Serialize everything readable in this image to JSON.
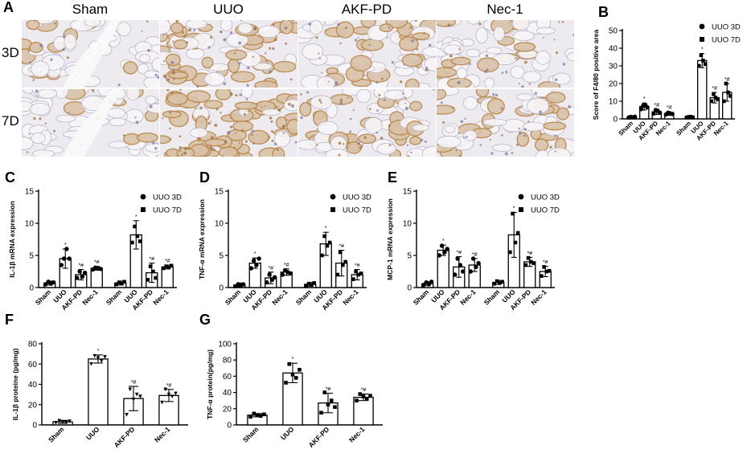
{
  "panel_letters": {
    "A": "A",
    "B": "B",
    "C": "C",
    "D": "D",
    "E": "E",
    "F": "F",
    "G": "G"
  },
  "micrograph": {
    "columns": [
      "Sham",
      "UUO",
      "AKF-PD",
      "Nec-1"
    ],
    "rows": [
      "3D",
      "7D"
    ],
    "staining_level": [
      [
        0.15,
        0.55,
        0.35,
        0.25
      ],
      [
        0.2,
        0.9,
        0.45,
        0.35
      ]
    ]
  },
  "colors": {
    "bar_fill": "#ffffff",
    "bar_stroke": "#000000",
    "tissue": "#eeebf0",
    "stain": "#b8874a"
  },
  "chart_data": [
    {
      "panel": "B",
      "type": "bar",
      "categories": [
        "Sham",
        "UUO",
        "AKF-PD",
        "Nec-1"
      ],
      "ylabel": "Score of F4/80 positive area",
      "ylim": [
        0,
        50
      ],
      "yticks": [
        0,
        10,
        20,
        30,
        40,
        50
      ],
      "series": [
        {
          "name": "UUO 3D",
          "marker": "circle",
          "values": [
            1,
            7,
            4,
            3
          ],
          "err": [
            0.4,
            2,
            1.5,
            1
          ],
          "annotations": [
            "",
            "*",
            "*#",
            "*#"
          ],
          "points": [
            [
              0.8,
              1.1,
              0.9,
              1.2
            ],
            [
              5.5,
              7.5,
              8,
              6.5
            ],
            [
              3,
              5,
              4.5,
              3.5
            ],
            [
              2.5,
              3.5,
              3,
              2.8
            ]
          ]
        },
        {
          "name": "UUO 7D",
          "marker": "square",
          "values": [
            1,
            33,
            12,
            15
          ],
          "err": [
            0.4,
            4,
            3,
            5
          ],
          "annotations": [
            "",
            "*",
            "*#",
            "*#"
          ],
          "points": [
            [
              0.8,
              1.1,
              1.2,
              0.9
            ],
            [
              30,
              36,
              33,
              31
            ],
            [
              10,
              14,
              12,
              11
            ],
            [
              10,
              20,
              15,
              13
            ]
          ]
        }
      ]
    },
    {
      "panel": "C",
      "type": "bar",
      "categories": [
        "Sham",
        "UUO",
        "AKF-PD",
        "Nec-1"
      ],
      "ylabel": "IL-1β mRNA expression",
      "ylim": [
        0,
        15
      ],
      "yticks": [
        0,
        5,
        10,
        15
      ],
      "series": [
        {
          "name": "UUO 3D",
          "marker": "circle",
          "values": [
            0.7,
            4.5,
            2.0,
            3.0
          ],
          "err": [
            0.3,
            1.5,
            0.8,
            0.3
          ],
          "annotations": [
            "",
            "*",
            "*#",
            "*#"
          ],
          "points": [
            [
              0.5,
              0.9,
              0.6,
              0.8
            ],
            [
              3.5,
              4.5,
              6.0,
              4.5
            ],
            [
              1.5,
              2.5,
              1.7,
              2.3
            ],
            [
              2.8,
              3.1,
              3.0,
              2.9
            ]
          ]
        },
        {
          "name": "UUO 7D",
          "marker": "square",
          "values": [
            0.7,
            8.2,
            2.3,
            3.2
          ],
          "err": [
            0.3,
            2.2,
            1.5,
            0.3
          ],
          "annotations": [
            "",
            "*",
            "*#",
            "*#"
          ],
          "points": [
            [
              0.5,
              0.8,
              0.6,
              0.9
            ],
            [
              7.0,
              9.5,
              8.0,
              7.2
            ],
            [
              1.2,
              3.3,
              2.5,
              1.5
            ],
            [
              3.0,
              3.3,
              3.1,
              3.4
            ]
          ]
        }
      ]
    },
    {
      "panel": "D",
      "type": "bar",
      "categories": [
        "Sham",
        "UUO",
        "AKF-PD",
        "Nec-1"
      ],
      "ylabel": "TNF-α mRNA expression",
      "ylim": [
        0,
        15
      ],
      "yticks": [
        0,
        5,
        10,
        15
      ],
      "series": [
        {
          "name": "UUO 3D",
          "marker": "circle",
          "values": [
            0.4,
            3.8,
            1.5,
            2.4
          ],
          "err": [
            0.3,
            0.8,
            0.9,
            0.5
          ],
          "annotations": [
            "",
            "*",
            "*#",
            "*#"
          ],
          "points": [
            [
              0.2,
              0.5,
              0.3,
              0.5
            ],
            [
              3.0,
              4.2,
              3.5,
              4.5
            ],
            [
              0.8,
              2.0,
              1.2,
              1.6
            ],
            [
              2.0,
              2.7,
              2.4,
              2.2
            ]
          ]
        },
        {
          "name": "UUO 7D",
          "marker": "square",
          "values": [
            0.5,
            6.8,
            3.8,
            2.0
          ],
          "err": [
            0.3,
            1.8,
            2.0,
            0.8
          ],
          "annotations": [
            "",
            "*",
            "*#",
            "*#"
          ],
          "points": [
            [
              0.3,
              0.6,
              0.4,
              0.7
            ],
            [
              5.0,
              8.0,
              6.5,
              7.0
            ],
            [
              2.0,
              5.5,
              3.5,
              4.0
            ],
            [
              1.3,
              2.5,
              2.0,
              2.2
            ]
          ]
        }
      ]
    },
    {
      "panel": "E",
      "type": "bar",
      "categories": [
        "Sham",
        "UUO",
        "AKF-PD",
        "Nec-1"
      ],
      "ylabel": "MCP-1 mRNA expression",
      "ylim": [
        0,
        15
      ],
      "yticks": [
        0,
        5,
        10,
        15
      ],
      "series": [
        {
          "name": "UUO 3D",
          "marker": "circle",
          "values": [
            0.6,
            5.8,
            3.2,
            3.5
          ],
          "err": [
            0.3,
            0.8,
            1.6,
            1.0
          ],
          "annotations": [
            "",
            "*",
            "*#",
            "*#"
          ],
          "points": [
            [
              0.4,
              0.8,
              0.5,
              0.9
            ],
            [
              5.0,
              6.5,
              5.5,
              6.0
            ],
            [
              2.0,
              4.5,
              3.5,
              2.5
            ],
            [
              2.5,
              4.5,
              3.2,
              3.8
            ]
          ]
        },
        {
          "name": "UUO 7D",
          "marker": "square",
          "values": [
            0.8,
            8.2,
            4.0,
            2.5
          ],
          "err": [
            0.3,
            3.5,
            0.7,
            0.8
          ],
          "annotations": [
            "",
            "*",
            "*#",
            "*#"
          ],
          "points": [
            [
              0.6,
              1.0,
              0.7,
              0.9
            ],
            [
              5.5,
              11.5,
              7.0,
              8.5
            ],
            [
              3.5,
              4.6,
              4.0,
              3.8
            ],
            [
              1.8,
              3.2,
              2.5,
              2.6
            ]
          ]
        }
      ]
    },
    {
      "panel": "F",
      "type": "bar",
      "categories": [
        "Sham",
        "UUO",
        "AKF-PD",
        "Nec-1"
      ],
      "ylabel": "IL-1β proteine (pg/mg)",
      "ylim": [
        0,
        80
      ],
      "yticks": [
        0,
        20,
        40,
        60,
        80
      ],
      "series": [
        {
          "marker": "triangle-down",
          "values": [
            3,
            65,
            26,
            29
          ],
          "err": [
            1.5,
            4,
            12,
            6
          ],
          "annotations": [
            "",
            "*",
            "*#",
            "*#"
          ],
          "points": [
            [
              2,
              4,
              3,
              2.5,
              3.5
            ],
            [
              60,
              68,
              66,
              63,
              67
            ],
            [
              10,
              35,
              25,
              30,
              28
            ],
            [
              22,
              35,
              30,
              28,
              31
            ]
          ]
        }
      ]
    },
    {
      "panel": "G",
      "type": "bar",
      "categories": [
        "Sham",
        "UUO",
        "AKF-PD",
        "Nec-1"
      ],
      "ylabel": "TNF-α protein(pg/mg)",
      "ylim": [
        0,
        100
      ],
      "yticks": [
        0,
        20,
        40,
        60,
        80,
        100
      ],
      "series": [
        {
          "marker": "square",
          "values": [
            12,
            64,
            27,
            34
          ],
          "err": [
            2,
            12,
            12,
            4
          ],
          "annotations": [
            "",
            "*",
            "*#",
            "*#"
          ],
          "points": [
            [
              10,
              14,
              12,
              11,
              13
            ],
            [
              52,
              75,
              62,
              58,
              68
            ],
            [
              15,
              40,
              25,
              30,
              22
            ],
            [
              30,
              38,
              35,
              32,
              36
            ]
          ]
        }
      ]
    }
  ]
}
